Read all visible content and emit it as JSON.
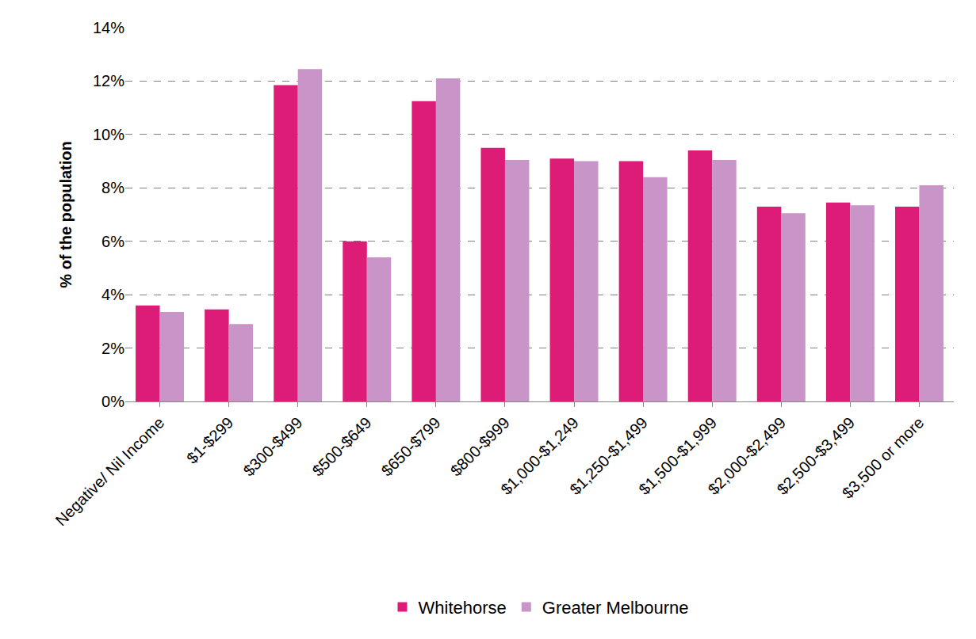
{
  "chart_data": {
    "type": "bar",
    "y_label": "% of the population",
    "categories": [
      "Negative/ Nil Income",
      "$1-$299",
      "$300-$499",
      "$500-$649",
      "$650-$799",
      "$800-$999",
      "$1,000-$1,249",
      "$1,250-$1,499",
      "$1,500-$1,999",
      "$2,000-$2,499",
      "$2,500-$3,499",
      "$3,500 or more"
    ],
    "series": [
      {
        "name": "Whitehorse",
        "color": "#dd1c77",
        "values": [
          3.6,
          3.45,
          11.85,
          6.0,
          11.25,
          9.5,
          9.1,
          9.0,
          9.4,
          7.3,
          7.45,
          7.3
        ]
      },
      {
        "name": "Greater Melbourne",
        "color": "#c994c7",
        "values": [
          3.35,
          2.9,
          12.45,
          5.4,
          12.1,
          9.05,
          9.0,
          8.4,
          9.05,
          7.05,
          7.35,
          8.1
        ]
      }
    ],
    "ylim": [
      0,
      14
    ],
    "yticks": [
      {
        "value": 0,
        "label": "0%"
      },
      {
        "value": 2,
        "label": "2%"
      },
      {
        "value": 4,
        "label": "4%"
      },
      {
        "value": 6,
        "label": "6%"
      },
      {
        "value": 8,
        "label": "8%"
      },
      {
        "value": 10,
        "label": "10%"
      },
      {
        "value": 12,
        "label": "12%"
      },
      {
        "value": 14,
        "label": "14%"
      }
    ],
    "grid": true,
    "legend": "bottom"
  }
}
